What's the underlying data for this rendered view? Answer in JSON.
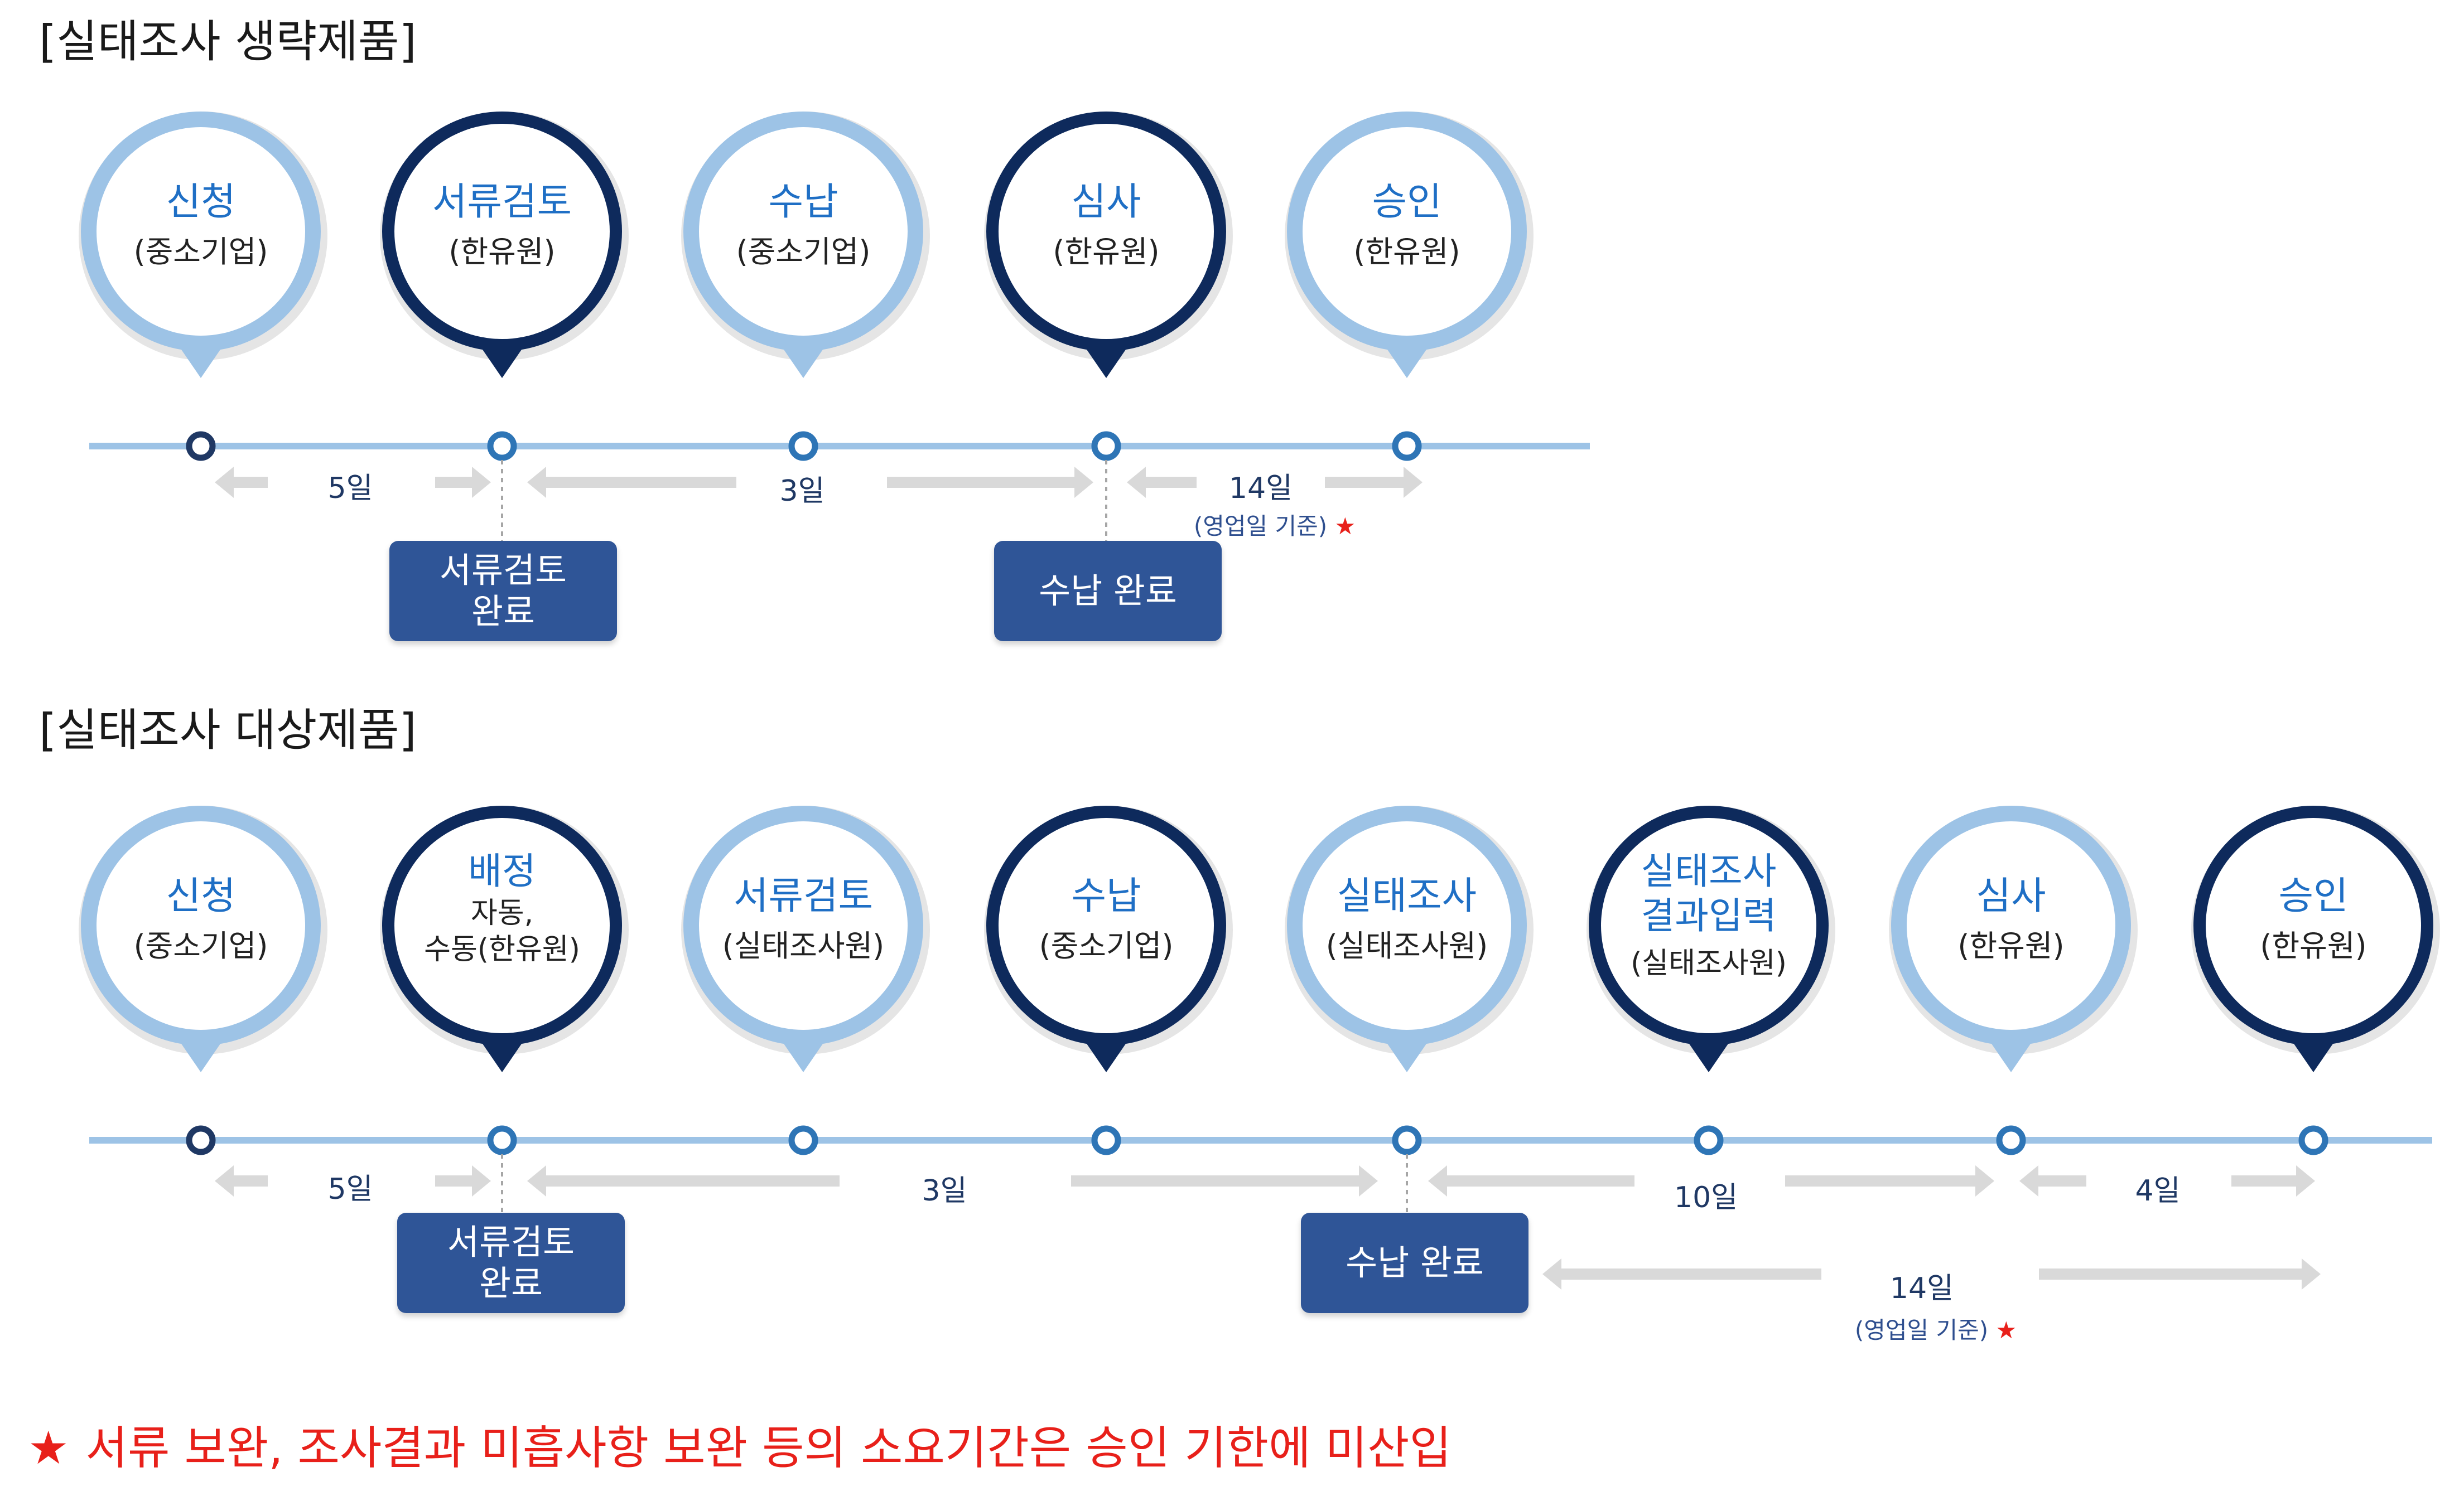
{
  "sections": [
    {
      "title": "[실태조사 생략제품]",
      "steps": [
        {
          "name": "신청",
          "sub": "(중소기업)",
          "style": "light"
        },
        {
          "name": "서류검토",
          "sub": "(한유원)",
          "style": "dark"
        },
        {
          "name": "수납",
          "sub": "(중소기업)",
          "style": "light"
        },
        {
          "name": "심사",
          "sub": "(한유원)",
          "style": "dark"
        },
        {
          "name": "승인",
          "sub": "(한유원)",
          "style": "light"
        }
      ],
      "durations": [
        {
          "label": "5일"
        },
        {
          "label": "3일"
        },
        {
          "label": "14일",
          "note": "(영업일 기준)",
          "star": "★"
        }
      ],
      "boxes": [
        {
          "lines": [
            "서류검토",
            "완료"
          ]
        },
        {
          "lines": [
            "수납 완료"
          ]
        }
      ]
    },
    {
      "title": "[실태조사 대상제품]",
      "steps": [
        {
          "name": "신청",
          "sub": "(중소기업)",
          "style": "light"
        },
        {
          "name": "배정",
          "sub": "자동,",
          "sub2": "수동(한유원)",
          "style": "dark"
        },
        {
          "name": "서류검토",
          "sub": "(실태조사원)",
          "style": "light"
        },
        {
          "name": "수납",
          "sub": "(중소기업)",
          "style": "dark"
        },
        {
          "name": "실태조사",
          "sub": "(실태조사원)",
          "style": "light"
        },
        {
          "name": "실태조사",
          "name2": "결과입력",
          "sub": "(실태조사원)",
          "style": "dark"
        },
        {
          "name": "심사",
          "sub": "(한유원)",
          "style": "light"
        },
        {
          "name": "승인",
          "sub": "(한유원)",
          "style": "dark"
        }
      ],
      "durations": [
        {
          "label": "5일"
        },
        {
          "label": "3일"
        },
        {
          "label": "10일"
        },
        {
          "label": "4일"
        },
        {
          "label": "14일",
          "note": "(영업일 기준)",
          "star": "★"
        }
      ],
      "boxes": [
        {
          "lines": [
            "서류검토",
            "완료"
          ]
        },
        {
          "lines": [
            "수납 완료"
          ]
        }
      ]
    }
  ],
  "footnote": {
    "star": "★",
    "text": "서류 보완, 조사결과 미흡사항 보완 등의 소요기간은 승인 기한에 미산입"
  },
  "colors": {
    "light_pin": "#9dc3e6",
    "dark_pin": "#0e2a5c",
    "step_text": "#1f6fc5",
    "timeline": "#9dc3e6",
    "arrow": "#d9d9d9",
    "box": "#2f5597",
    "star_red": "#e8201a"
  }
}
